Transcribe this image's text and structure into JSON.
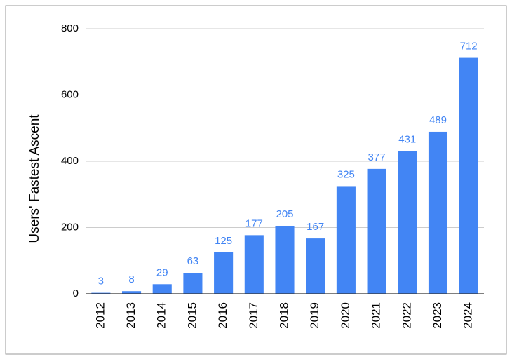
{
  "chart_data": {
    "type": "bar",
    "y_label": "Users' Fastest Ascent",
    "categories": [
      "2012",
      "2013",
      "2014",
      "2015",
      "2016",
      "2017",
      "2018",
      "2019",
      "2020",
      "2021",
      "2022",
      "2023",
      "2024"
    ],
    "values": [
      3,
      8,
      29,
      63,
      125,
      177,
      205,
      167,
      325,
      377,
      431,
      489,
      712
    ],
    "color": "#4285f4",
    "ylim": [
      0,
      800
    ],
    "yticks": [
      0,
      200,
      400,
      600,
      800
    ],
    "grid": true
  }
}
